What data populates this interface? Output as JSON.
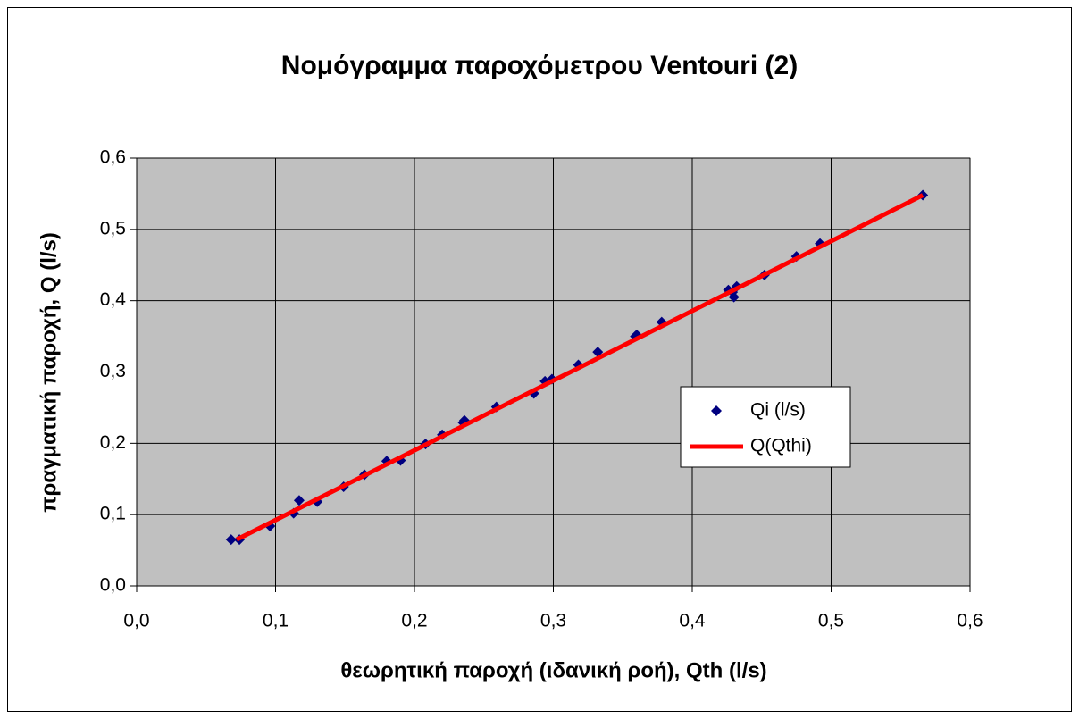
{
  "chart_data": {
    "type": "scatter",
    "title": "Νομόγραμμα παροχόμετρου Ventouri (2)",
    "x_label": "θεωρητική παροχή (ιδανική ροή), Qth (l/s)",
    "y_label": "πραγματική παροχή, Q (l/s)",
    "xlim": [
      0,
      0.6
    ],
    "ylim": [
      0,
      0.6
    ],
    "xticks": [
      {
        "value": 0,
        "label": "0,0"
      },
      {
        "value": 0.1,
        "label": "0,1"
      },
      {
        "value": 0.2,
        "label": "0,2"
      },
      {
        "value": 0.3,
        "label": "0,3"
      },
      {
        "value": 0.4,
        "label": "0,4"
      },
      {
        "value": 0.5,
        "label": "0,5"
      },
      {
        "value": 0.6,
        "label": "0,6"
      }
    ],
    "yticks": [
      {
        "value": 0,
        "label": "0,0"
      },
      {
        "value": 0.1,
        "label": "0,1"
      },
      {
        "value": 0.2,
        "label": "0,2"
      },
      {
        "value": 0.3,
        "label": "0,3"
      },
      {
        "value": 0.4,
        "label": "0,4"
      },
      {
        "value": 0.5,
        "label": "0,5"
      },
      {
        "value": 0.6,
        "label": "0,6"
      }
    ],
    "grid": true,
    "legend": "right",
    "series": [
      {
        "name": "Qi (l/s)",
        "color": "#000080",
        "mode": "markers",
        "x": [
          0.068,
          0.074,
          0.096,
          0.113,
          0.117,
          0.13,
          0.149,
          0.164,
          0.18,
          0.19,
          0.208,
          0.22,
          0.235,
          0.236,
          0.259,
          0.286,
          0.294,
          0.299,
          0.318,
          0.332,
          0.359,
          0.36,
          0.378,
          0.426,
          0.429,
          0.43,
          0.432,
          0.452,
          0.475,
          0.492,
          0.566
        ],
        "values": [
          0.065,
          0.065,
          0.084,
          0.102,
          0.12,
          0.118,
          0.139,
          0.156,
          0.175,
          0.176,
          0.199,
          0.212,
          0.229,
          0.232,
          0.251,
          0.27,
          0.287,
          0.29,
          0.31,
          0.328,
          0.35,
          0.352,
          0.37,
          0.415,
          0.412,
          0.405,
          0.42,
          0.436,
          0.462,
          0.48,
          0.548
        ]
      },
      {
        "name": "Q(Qthi)",
        "color": "#ff0000",
        "mode": "line",
        "x": [
          0.072,
          0.566
        ],
        "values": [
          0.065,
          0.548
        ]
      }
    ]
  }
}
